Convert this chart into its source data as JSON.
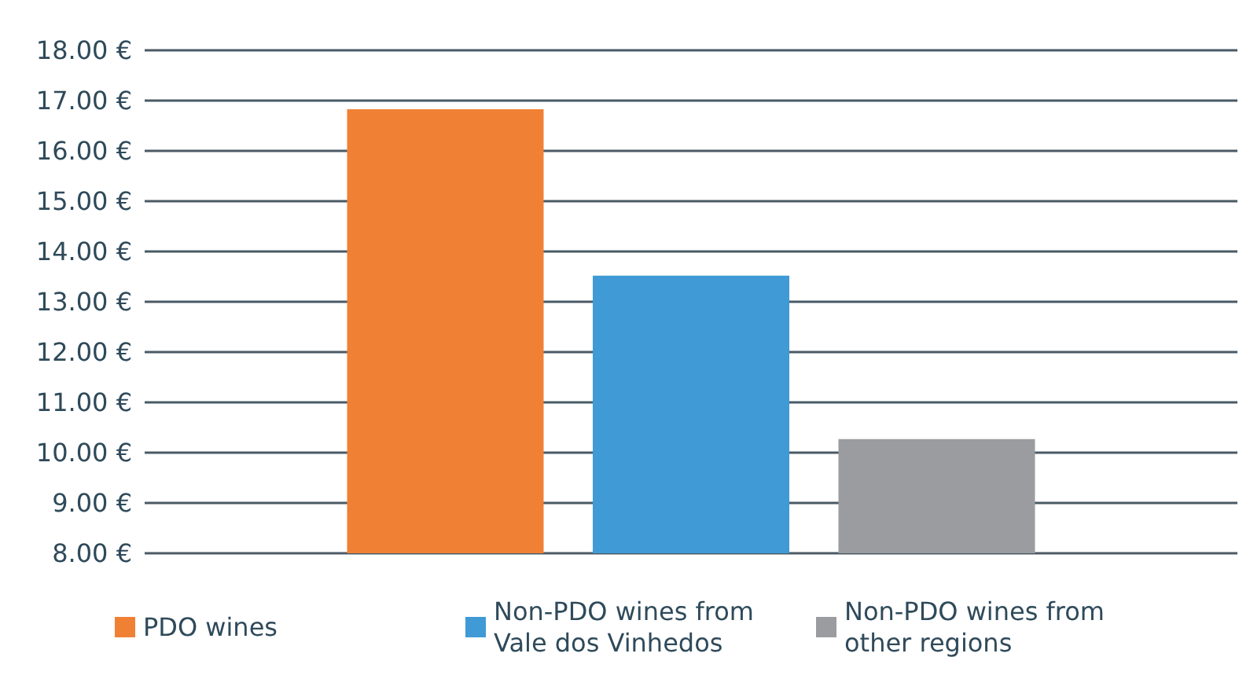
{
  "chart_data": {
    "type": "bar",
    "categories": [
      null
    ],
    "series": [
      {
        "name": "PDO wines",
        "color": "#f08134",
        "values": [
          16.83
        ]
      },
      {
        "name": "Non-PDO wines from Vale dos Vinhedos",
        "color": "#3f9ad6",
        "values": [
          13.52
        ]
      },
      {
        "name": "Non-PDO wines from other regions",
        "color": "#9b9c9f",
        "values": [
          10.27
        ]
      }
    ],
    "ylim": [
      8,
      18
    ],
    "yticks": [
      {
        "value": 8,
        "label": "8.00 €"
      },
      {
        "value": 9,
        "label": "9.00 €"
      },
      {
        "value": 10,
        "label": "10.00 €"
      },
      {
        "value": 11,
        "label": "11.00 €"
      },
      {
        "value": 12,
        "label": "12.00 €"
      },
      {
        "value": 13,
        "label": "13.00 €"
      },
      {
        "value": 14,
        "label": "14.00 €"
      },
      {
        "value": 15,
        "label": "15.00 €"
      },
      {
        "value": 16,
        "label": "16.00 €"
      },
      {
        "value": 17,
        "label": "17.00 €"
      },
      {
        "value": 18,
        "label": "18.00 €"
      }
    ],
    "grid": "y",
    "legend": "bottom"
  }
}
